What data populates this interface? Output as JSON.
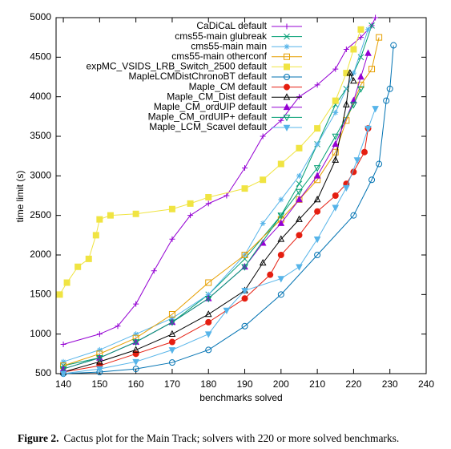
{
  "chart_data": {
    "type": "line",
    "xlabel": "benchmarks solved",
    "ylabel": "time limit (s)",
    "xlim": [
      138,
      240
    ],
    "ylim": [
      500,
      5000
    ],
    "xticks": [
      140,
      150,
      160,
      170,
      180,
      190,
      200,
      210,
      220,
      230,
      240
    ],
    "yticks": [
      500,
      1000,
      1500,
      2000,
      2500,
      3000,
      3500,
      4000,
      4500,
      5000
    ],
    "legend": "upper-left",
    "series": [
      {
        "name": "CaDiCaL default",
        "color": "#9400d3",
        "marker": "plus",
        "x": [
          140,
          150,
          155,
          160,
          165,
          170,
          175,
          180,
          185,
          190,
          195,
          200,
          205,
          210,
          215,
          218,
          222,
          225,
          226
        ],
        "values": [
          870,
          1000,
          1100,
          1380,
          1800,
          2200,
          2500,
          2650,
          2750,
          3100,
          3500,
          3700,
          4000,
          4150,
          4350,
          4600,
          4750,
          4900,
          5000
        ]
      },
      {
        "name": "cms55-main glubreak",
        "color": "#009e73",
        "marker": "cross",
        "x": [
          140,
          150,
          160,
          170,
          180,
          190,
          200,
          205,
          210,
          215,
          218,
          222,
          225
        ],
        "values": [
          600,
          700,
          900,
          1150,
          1500,
          1950,
          2500,
          2900,
          3400,
          3900,
          4100,
          4500,
          4900
        ]
      },
      {
        "name": "cms55-main main",
        "color": "#56b4e9",
        "marker": "star",
        "x": [
          140,
          150,
          160,
          170,
          180,
          190,
          195,
          200,
          205,
          210,
          215,
          220,
          224
        ],
        "values": [
          650,
          800,
          1000,
          1200,
          1500,
          2000,
          2400,
          2700,
          3000,
          3400,
          3800,
          4300,
          4850
        ]
      },
      {
        "name": "cms55-main otherconf",
        "color": "#e69f00",
        "marker": "square-open",
        "x": [
          140,
          150,
          160,
          170,
          180,
          190,
          200,
          205,
          210,
          215,
          218,
          222,
          225,
          227
        ],
        "values": [
          600,
          750,
          950,
          1250,
          1650,
          2000,
          2450,
          2700,
          2950,
          3300,
          3700,
          4150,
          4350,
          4750
        ]
      },
      {
        "name": "expMC_VSIDS_LRB_Switch_2500 default",
        "color": "#f0e442",
        "marker": "square",
        "x": [
          139,
          141,
          144,
          147,
          149,
          150,
          153,
          160,
          170,
          175,
          180,
          190,
          195,
          200,
          205,
          210,
          215,
          218,
          220,
          222
        ],
        "values": [
          1500,
          1650,
          1850,
          1950,
          2250,
          2450,
          2500,
          2520,
          2580,
          2650,
          2730,
          2840,
          2950,
          3150,
          3350,
          3600,
          3950,
          4300,
          4600,
          4850
        ]
      },
      {
        "name": "MapleLCMDistChronoBT default",
        "color": "#0072b2",
        "marker": "circle-open",
        "x": [
          140,
          150,
          160,
          170,
          180,
          190,
          200,
          210,
          220,
          225,
          227,
          229,
          230,
          231
        ],
        "values": [
          500,
          520,
          560,
          640,
          800,
          1100,
          1500,
          2000,
          2500,
          2950,
          3150,
          3950,
          4100,
          4650
        ]
      },
      {
        "name": "Maple_CM default",
        "color": "#e51e10",
        "marker": "circle",
        "x": [
          140,
          150,
          160,
          170,
          180,
          190,
          197,
          200,
          205,
          210,
          215,
          218,
          220,
          223,
          224
        ],
        "values": [
          520,
          600,
          750,
          900,
          1150,
          1450,
          1750,
          2000,
          2250,
          2550,
          2750,
          2900,
          3050,
          3300,
          3600
        ]
      },
      {
        "name": "Maple_CM_Dist default",
        "color": "#000000",
        "marker": "triangle-open",
        "x": [
          140,
          150,
          160,
          170,
          180,
          190,
          195,
          200,
          205,
          210,
          215,
          218,
          219,
          220
        ],
        "values": [
          520,
          650,
          800,
          1000,
          1250,
          1550,
          1900,
          2200,
          2450,
          2700,
          3200,
          3900,
          4300,
          4200
        ]
      },
      {
        "name": "Maple_CM_ordUIP default",
        "color": "#9400d3",
        "marker": "triangle",
        "x": [
          140,
          150,
          160,
          170,
          180,
          190,
          195,
          200,
          205,
          210,
          215,
          220,
          222,
          224
        ],
        "values": [
          560,
          700,
          900,
          1150,
          1450,
          1850,
          2150,
          2400,
          2700,
          3000,
          3400,
          3950,
          4250,
          4550
        ]
      },
      {
        "name": "Maple_CM_ordUIP+ default",
        "color": "#009e73",
        "marker": "triangle-down-open",
        "x": [
          140,
          150,
          160,
          170,
          180,
          190,
          200,
          205,
          210,
          215,
          220,
          222
        ],
        "values": [
          560,
          700,
          900,
          1150,
          1450,
          1850,
          2500,
          2800,
          3100,
          3500,
          3900,
          4100
        ]
      },
      {
        "name": "Maple_LCM_Scavel default",
        "color": "#56b4e9",
        "marker": "triangle-down",
        "x": [
          140,
          150,
          160,
          170,
          180,
          185,
          190,
          200,
          205,
          210,
          215,
          218,
          221,
          224,
          226
        ],
        "values": [
          500,
          560,
          650,
          800,
          1000,
          1300,
          1550,
          1700,
          1850,
          2200,
          2600,
          2850,
          3200,
          3600,
          3850
        ]
      }
    ]
  },
  "caption": {
    "label": "Figure 2.",
    "text": "Cactus plot for the Main Track; solvers with 220 or more solved benchmarks."
  }
}
